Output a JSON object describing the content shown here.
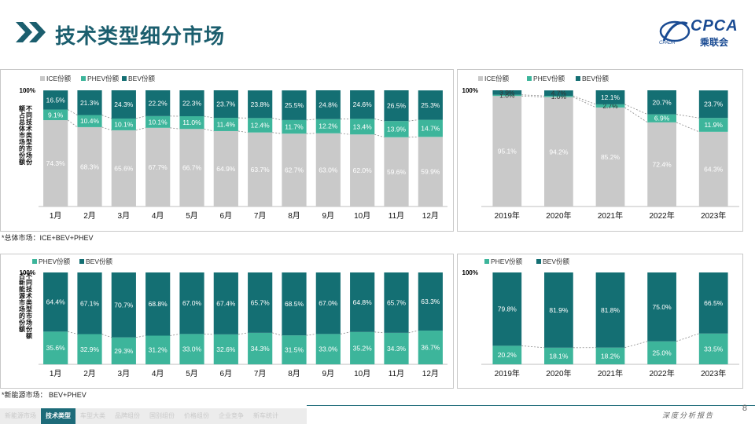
{
  "page": {
    "title": "技术类型细分市场",
    "logo_text": "CPCA",
    "logo_cn": "乘联会",
    "logo_sub": "CPADA",
    "page_number": "8",
    "slogan": "深度分析报告",
    "nav_tabs": [
      "新能源市场",
      "技术类型",
      "车型大类",
      "品牌组份",
      "国别组份",
      "价格组份",
      "企业竞争",
      "新车统计"
    ],
    "active_tab": 1
  },
  "colors": {
    "ICE": "#c9c9c9",
    "PHEV": "#3db59b",
    "BEV": "#146f73",
    "title": "#1b5e6e"
  },
  "notes": {
    "top": "*总体市场：ICE+BEV+PHEV",
    "bottom": "*新能源市场：  BEV+PHEV"
  },
  "chart_data": [
    {
      "type": "bar",
      "stacked": "percent",
      "ylabel": "不同技术类型市场份额占总体市场的份额",
      "ytick": "100%",
      "legend_position": "top-left",
      "categories": [
        "1月",
        "2月",
        "3月",
        "4月",
        "5月",
        "6月",
        "7月",
        "8月",
        "9月",
        "10月",
        "11月",
        "12月"
      ],
      "series": [
        {
          "name": "ICE份额",
          "values": [
            74.3,
            68.3,
            65.6,
            67.7,
            66.7,
            64.9,
            63.7,
            62.7,
            63.0,
            62.0,
            59.6,
            59.9
          ],
          "labels": [
            "74.3%",
            "68.3%",
            "65.6%",
            "67.7%",
            "66.7%",
            "64.9%",
            "63.7%",
            "62.7%",
            "63.0%",
            "62.0%",
            "59.6%",
            "59.9%"
          ]
        },
        {
          "name": "PHEV份额",
          "values": [
            9.1,
            10.4,
            10.1,
            10.1,
            11.0,
            11.4,
            12.4,
            11.7,
            12.2,
            13.4,
            13.9,
            14.7
          ],
          "labels": [
            "9.1%",
            "10.4%",
            "10.1%",
            "10.1%",
            "11.0%",
            "11.4%",
            "12.4%",
            "11.7%",
            "12.2%",
            "13.4%",
            "13.9%",
            "14.7%"
          ]
        },
        {
          "name": "BEV份额",
          "values": [
            16.5,
            21.3,
            24.3,
            22.2,
            22.3,
            23.7,
            23.8,
            25.5,
            24.8,
            24.6,
            26.5,
            25.3
          ],
          "labels": [
            "16.5%",
            "21.3%",
            "24.3%",
            "22.2%",
            "22.3%",
            "23.7%",
            "23.8%",
            "25.5%",
            "24.8%",
            "24.6%",
            "26.5%",
            "25.3%"
          ]
        }
      ]
    },
    {
      "type": "bar",
      "stacked": "percent",
      "ytick": "100%",
      "legend_position": "top-left",
      "categories": [
        "2019年",
        "2020年",
        "2021年",
        "2022年",
        "2023年"
      ],
      "series": [
        {
          "name": "ICE份额",
          "values": [
            95.1,
            94.2,
            85.2,
            72.4,
            64.3
          ],
          "labels": [
            "95.1%",
            "94.2%",
            "85.2%",
            "72.4%",
            "64.3%"
          ]
        },
        {
          "name": "PHEV份额",
          "values": [
            1.0,
            1.0,
            2.7,
            6.9,
            11.9
          ],
          "labels": [
            "1.0%",
            "1.0%",
            "2.7%",
            "6.9%",
            "11.9%"
          ]
        },
        {
          "name": "BEV份额",
          "values": [
            3.9,
            4.7,
            12.1,
            20.7,
            23.7
          ],
          "labels": [
            "3.9%",
            "4.7%",
            "12.1%",
            "20.7%",
            "23.7%"
          ]
        }
      ]
    },
    {
      "type": "bar",
      "stacked": "percent",
      "ylabel": "不同技术类型市场份额占新能源市场的份额",
      "ytick": "100%",
      "legend_position": "top-left",
      "categories": [
        "1月",
        "2月",
        "3月",
        "4月",
        "5月",
        "6月",
        "7月",
        "8月",
        "9月",
        "10月",
        "11月",
        "12月"
      ],
      "series": [
        {
          "name": "PHEV份额",
          "values": [
            35.6,
            32.9,
            29.3,
            31.2,
            33.0,
            32.6,
            34.3,
            31.5,
            33.0,
            35.2,
            34.3,
            36.7
          ],
          "labels": [
            "35.6%",
            "32.9%",
            "29.3%",
            "31.2%",
            "33.0%",
            "32.6%",
            "34.3%",
            "31.5%",
            "33.0%",
            "35.2%",
            "34.3%",
            "36.7%"
          ]
        },
        {
          "name": "BEV份额",
          "values": [
            64.4,
            67.1,
            70.7,
            68.8,
            67.0,
            67.4,
            65.7,
            68.5,
            67.0,
            64.8,
            65.7,
            63.3
          ],
          "labels": [
            "64.4%",
            "67.1%",
            "70.7%",
            "68.8%",
            "67.0%",
            "67.4%",
            "65.7%",
            "68.5%",
            "67.0%",
            "64.8%",
            "65.7%",
            "63.3%"
          ]
        }
      ]
    },
    {
      "type": "bar",
      "stacked": "percent",
      "ytick": "100%",
      "legend_position": "top-left",
      "categories": [
        "2019年",
        "2020年",
        "2021年",
        "2022年",
        "2023年"
      ],
      "series": [
        {
          "name": "PHEV份额",
          "values": [
            20.2,
            18.1,
            18.2,
            25.0,
            33.5
          ],
          "labels": [
            "20.2%",
            "18.1%",
            "18.2%",
            "25.0%",
            "33.5%"
          ]
        },
        {
          "name": "BEV份额",
          "values": [
            79.8,
            81.9,
            81.8,
            75.0,
            66.5
          ],
          "labels": [
            "79.8%",
            "81.9%",
            "81.8%",
            "75.0%",
            "66.5%"
          ]
        }
      ]
    }
  ]
}
